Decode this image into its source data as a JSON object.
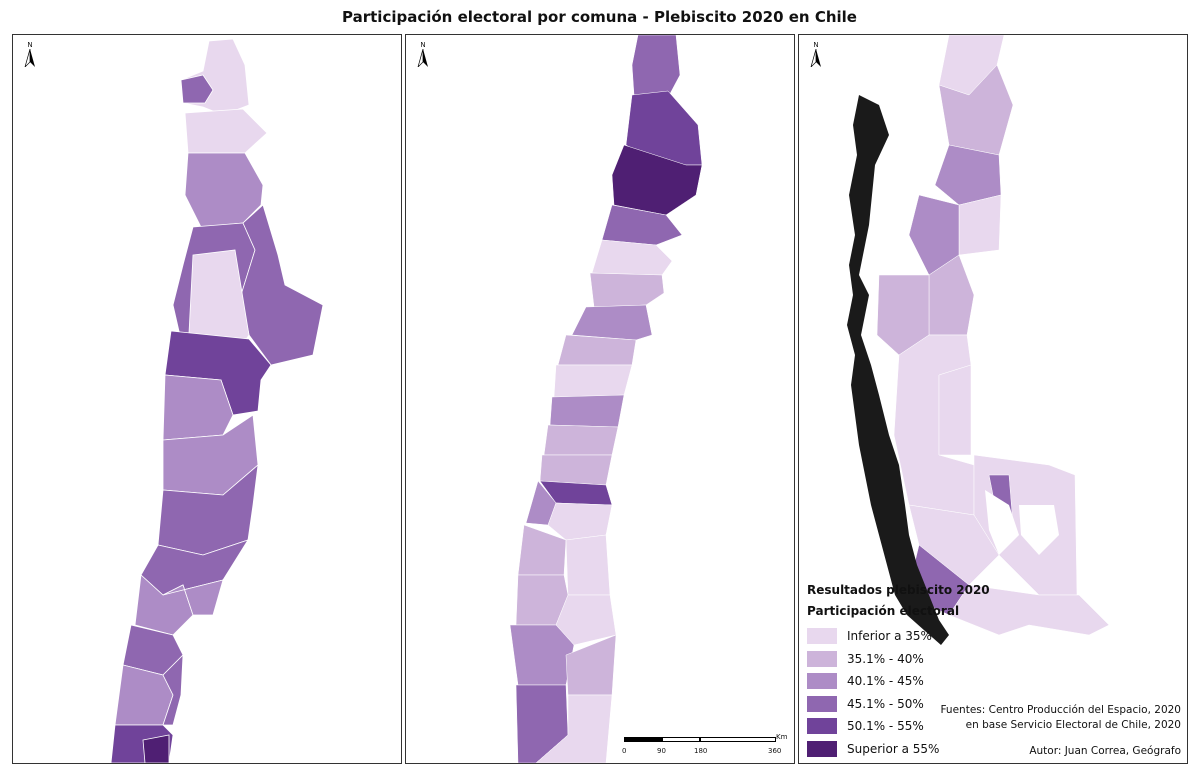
{
  "title": "Participación electoral por comuna - Plebiscito 2020 en Chile",
  "north_label": "N",
  "legend": {
    "title1": "Resultados plebiscito 2020",
    "title2": "Participación electoral",
    "items": [
      {
        "label": "Inferior a 35%",
        "color": "#e8d8ee"
      },
      {
        "label": "35.1% - 40%",
        "color": "#cdb4da"
      },
      {
        "label": "40.1% - 45%",
        "color": "#ad8cc6"
      },
      {
        "label": "45.1% - 50%",
        "color": "#8f67b0"
      },
      {
        "label": "50.1% - 55%",
        "color": "#70439a"
      },
      {
        "label": "Superior a 55%",
        "color": "#4f1f73"
      }
    ]
  },
  "scale": {
    "ticks": [
      "0",
      "90",
      "180",
      "360"
    ],
    "unit": "Km"
  },
  "sources": {
    "line1": "Fuentes: Centro Producción del Espacio, 2020",
    "line2": "en base Servicio Electoral de Chile, 2020"
  },
  "author": "Autor: Juan Correa, Geógrafo"
}
